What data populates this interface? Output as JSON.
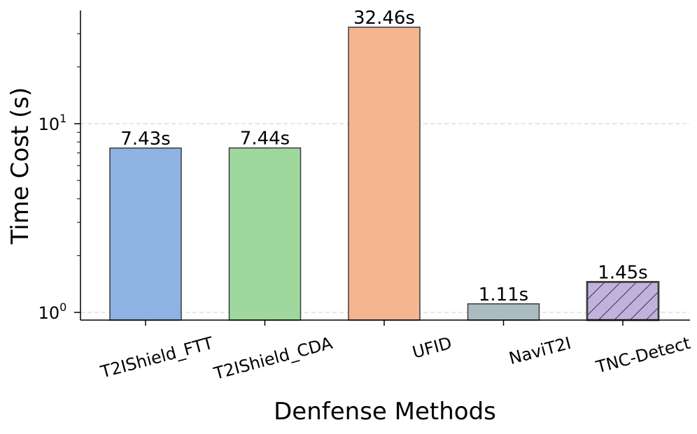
{
  "chart_data": {
    "type": "bar",
    "title": "",
    "xlabel": "Denfense Methods",
    "ylabel": "Time Cost (s)",
    "yscale": "log",
    "ylim": [
      0.9,
      40
    ],
    "grid": "horizontal-dashed",
    "categories": [
      "T2IShield_FTT",
      "T2IShield_CDA",
      "UFID",
      "NaviT2I",
      "TNC-Detect"
    ],
    "values": [
      7.43,
      7.44,
      32.46,
      1.11,
      1.45
    ],
    "data_labels": [
      "7.43s",
      "7.44s",
      "32.46s",
      "1.11s",
      "1.45s"
    ],
    "colors": [
      "#8eb2e2",
      "#9fd89d",
      "#f5b591",
      "#abbbc2",
      "#c0b2dd"
    ],
    "hatched": [
      false,
      false,
      false,
      false,
      true
    ],
    "yticks": [
      {
        "value": 1,
        "base": "10",
        "exp": "0"
      },
      {
        "value": 10,
        "base": "10",
        "exp": "1"
      }
    ]
  }
}
